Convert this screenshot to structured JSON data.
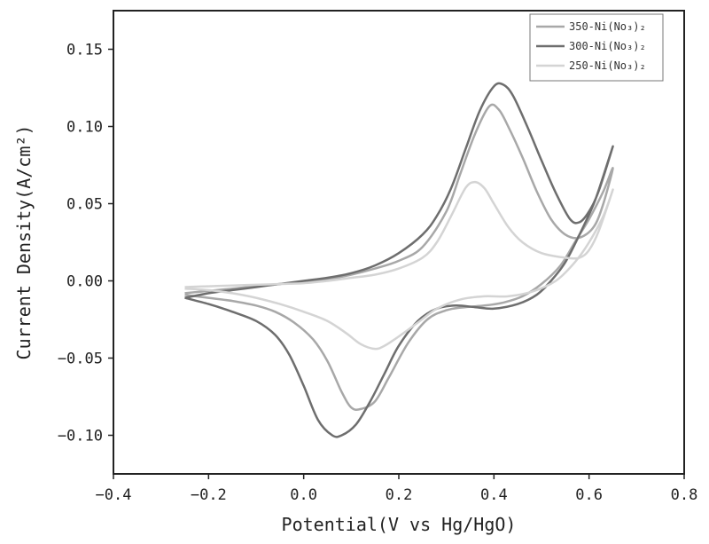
{
  "chart_data": {
    "type": "line",
    "title": "",
    "xlabel": "Potential(V vs Hg/HgO)",
    "ylabel": "Current Density(A/cm²)",
    "xlim": [
      -0.4,
      0.8
    ],
    "ylim": [
      -0.125,
      0.175
    ],
    "xticks": [
      -0.4,
      -0.2,
      0.0,
      0.2,
      0.4,
      0.6,
      0.8
    ],
    "yticks": [
      -0.1,
      -0.05,
      0.0,
      0.05,
      0.1,
      0.15
    ],
    "xtick_labels": [
      "−0.4",
      "−0.2",
      "0.0",
      "0.2",
      "0.4",
      "0.6",
      "0.8"
    ],
    "ytick_labels": [
      "−0.10",
      "−0.05",
      "0.00",
      "0.05",
      "0.10",
      "0.15"
    ],
    "grid": false,
    "legend_position": "top-right",
    "series": [
      {
        "name": "350-Ni(No₃)₂",
        "color": "#a8a8a8",
        "points": [
          [
            -0.25,
            -0.008
          ],
          [
            -0.2,
            -0.0065
          ],
          [
            -0.15,
            -0.005
          ],
          [
            -0.1,
            -0.0035
          ],
          [
            -0.05,
            -0.002
          ],
          [
            0.0,
            -0.001
          ],
          [
            0.05,
            0.001
          ],
          [
            0.1,
            0.004
          ],
          [
            0.15,
            0.008
          ],
          [
            0.2,
            0.013
          ],
          [
            0.25,
            0.022
          ],
          [
            0.3,
            0.045
          ],
          [
            0.33,
            0.07
          ],
          [
            0.36,
            0.095
          ],
          [
            0.39,
            0.113
          ],
          [
            0.41,
            0.111
          ],
          [
            0.43,
            0.1
          ],
          [
            0.46,
            0.08
          ],
          [
            0.49,
            0.058
          ],
          [
            0.52,
            0.04
          ],
          [
            0.55,
            0.03
          ],
          [
            0.58,
            0.028
          ],
          [
            0.61,
            0.035
          ],
          [
            0.63,
            0.05
          ],
          [
            0.65,
            0.073
          ],
          [
            0.63,
            0.058
          ],
          [
            0.6,
            0.04
          ],
          [
            0.57,
            0.025
          ],
          [
            0.54,
            0.01
          ],
          [
            0.5,
            -0.002
          ],
          [
            0.46,
            -0.01
          ],
          [
            0.42,
            -0.014
          ],
          [
            0.38,
            -0.016
          ],
          [
            0.34,
            -0.017
          ],
          [
            0.3,
            -0.019
          ],
          [
            0.26,
            -0.025
          ],
          [
            0.22,
            -0.04
          ],
          [
            0.18,
            -0.062
          ],
          [
            0.15,
            -0.078
          ],
          [
            0.12,
            -0.083
          ],
          [
            0.1,
            -0.082
          ],
          [
            0.08,
            -0.072
          ],
          [
            0.05,
            -0.052
          ],
          [
            0.02,
            -0.038
          ],
          [
            -0.02,
            -0.027
          ],
          [
            -0.06,
            -0.02
          ],
          [
            -0.1,
            -0.016
          ],
          [
            -0.15,
            -0.013
          ],
          [
            -0.2,
            -0.011
          ],
          [
            -0.25,
            -0.009
          ]
        ]
      },
      {
        "name": "300-Ni(No₃)₂",
        "color": "#6e6e6e",
        "points": [
          [
            -0.25,
            -0.011
          ],
          [
            -0.2,
            -0.008
          ],
          [
            -0.15,
            -0.006
          ],
          [
            -0.1,
            -0.004
          ],
          [
            -0.05,
            -0.002
          ],
          [
            0.0,
            0.0
          ],
          [
            0.05,
            0.002
          ],
          [
            0.1,
            0.005
          ],
          [
            0.15,
            0.01
          ],
          [
            0.2,
            0.018
          ],
          [
            0.25,
            0.03
          ],
          [
            0.28,
            0.042
          ],
          [
            0.31,
            0.06
          ],
          [
            0.34,
            0.085
          ],
          [
            0.37,
            0.11
          ],
          [
            0.4,
            0.126
          ],
          [
            0.42,
            0.127
          ],
          [
            0.44,
            0.12
          ],
          [
            0.47,
            0.1
          ],
          [
            0.5,
            0.078
          ],
          [
            0.53,
            0.057
          ],
          [
            0.56,
            0.04
          ],
          [
            0.58,
            0.038
          ],
          [
            0.6,
            0.045
          ],
          [
            0.62,
            0.058
          ],
          [
            0.65,
            0.087
          ],
          [
            0.63,
            0.068
          ],
          [
            0.61,
            0.05
          ],
          [
            0.58,
            0.03
          ],
          [
            0.55,
            0.012
          ],
          [
            0.52,
            0.0
          ],
          [
            0.49,
            -0.009
          ],
          [
            0.45,
            -0.015
          ],
          [
            0.4,
            -0.018
          ],
          [
            0.36,
            -0.017
          ],
          [
            0.32,
            -0.016
          ],
          [
            0.28,
            -0.018
          ],
          [
            0.24,
            -0.026
          ],
          [
            0.2,
            -0.042
          ],
          [
            0.17,
            -0.06
          ],
          [
            0.14,
            -0.078
          ],
          [
            0.11,
            -0.093
          ],
          [
            0.08,
            -0.1
          ],
          [
            0.06,
            -0.1
          ],
          [
            0.03,
            -0.09
          ],
          [
            0.0,
            -0.068
          ],
          [
            -0.03,
            -0.048
          ],
          [
            -0.06,
            -0.035
          ],
          [
            -0.1,
            -0.026
          ],
          [
            -0.15,
            -0.02
          ],
          [
            -0.2,
            -0.015
          ],
          [
            -0.25,
            -0.011
          ]
        ]
      },
      {
        "name": "250-Ni(No₃)₂",
        "color": "#d4d4d4",
        "points": [
          [
            -0.25,
            -0.004
          ],
          [
            -0.2,
            -0.0035
          ],
          [
            -0.15,
            -0.003
          ],
          [
            -0.1,
            -0.0025
          ],
          [
            -0.05,
            -0.002
          ],
          [
            0.0,
            -0.0015
          ],
          [
            0.05,
            0.0
          ],
          [
            0.1,
            0.002
          ],
          [
            0.15,
            0.004
          ],
          [
            0.2,
            0.008
          ],
          [
            0.25,
            0.015
          ],
          [
            0.28,
            0.025
          ],
          [
            0.31,
            0.042
          ],
          [
            0.34,
            0.06
          ],
          [
            0.36,
            0.064
          ],
          [
            0.38,
            0.06
          ],
          [
            0.4,
            0.05
          ],
          [
            0.43,
            0.035
          ],
          [
            0.46,
            0.025
          ],
          [
            0.5,
            0.018
          ],
          [
            0.55,
            0.015
          ],
          [
            0.58,
            0.015
          ],
          [
            0.6,
            0.02
          ],
          [
            0.62,
            0.032
          ],
          [
            0.65,
            0.059
          ],
          [
            0.63,
            0.042
          ],
          [
            0.6,
            0.025
          ],
          [
            0.57,
            0.012
          ],
          [
            0.53,
            0.0
          ],
          [
            0.48,
            -0.007
          ],
          [
            0.43,
            -0.01
          ],
          [
            0.38,
            -0.01
          ],
          [
            0.33,
            -0.012
          ],
          [
            0.28,
            -0.018
          ],
          [
            0.24,
            -0.027
          ],
          [
            0.2,
            -0.036
          ],
          [
            0.17,
            -0.042
          ],
          [
            0.15,
            -0.044
          ],
          [
            0.12,
            -0.041
          ],
          [
            0.09,
            -0.034
          ],
          [
            0.05,
            -0.026
          ],
          [
            0.0,
            -0.02
          ],
          [
            -0.05,
            -0.015
          ],
          [
            -0.1,
            -0.011
          ],
          [
            -0.15,
            -0.008
          ],
          [
            -0.2,
            -0.006
          ],
          [
            -0.25,
            -0.005
          ]
        ]
      }
    ]
  }
}
